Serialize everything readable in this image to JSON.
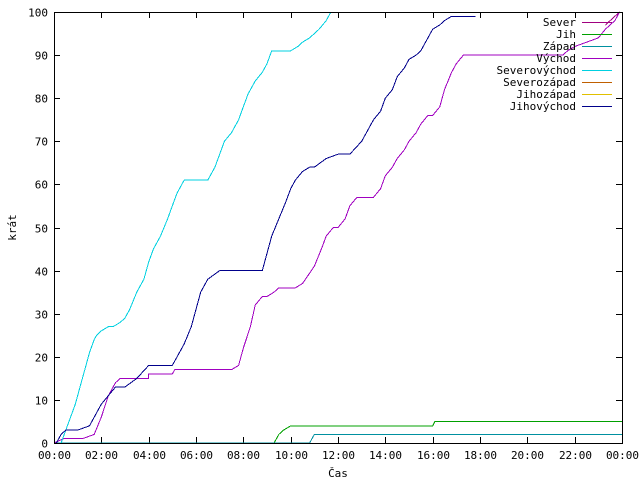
{
  "chart_data": {
    "type": "line",
    "xlabel": "Čas",
    "ylabel": "krát",
    "xlim": [
      0,
      24
    ],
    "ylim": [
      0,
      100
    ],
    "grid": false,
    "legend_position": "top-right",
    "x_ticks": [
      "00:00",
      "02:00",
      "04:00",
      "06:00",
      "08:00",
      "10:00",
      "12:00",
      "14:00",
      "16:00",
      "18:00",
      "20:00",
      "22:00",
      "00:00"
    ],
    "y_ticks": [
      "0",
      "10",
      "20",
      "30",
      "40",
      "50",
      "60",
      "70",
      "80",
      "90",
      "100"
    ],
    "series": [
      {
        "name": "Sever",
        "color": "#a0007f",
        "x": [
          23.3,
          23.9
        ],
        "y": [
          97,
          100
        ]
      },
      {
        "name": "Jih",
        "color": "#00a000",
        "x": [
          0,
          9.3,
          9.5,
          9.7,
          10.0,
          16.0,
          16.1,
          24.0
        ],
        "y": [
          0,
          0,
          2,
          3,
          4,
          4,
          5,
          5
        ]
      },
      {
        "name": "Západ",
        "color": "#0090a0",
        "x": [
          0,
          10.8,
          11.0,
          24.0
        ],
        "y": [
          0,
          0,
          2,
          2
        ]
      },
      {
        "name": "Východ",
        "color": "#a000c0",
        "x": [
          0,
          0.4,
          1.2,
          1.7,
          2.0,
          2.3,
          2.6,
          2.8,
          2.9,
          3.5,
          4.0,
          4.0,
          5.0,
          5.1,
          6.5,
          7.5,
          7.8,
          8.0,
          8.3,
          8.5,
          8.8,
          9.0,
          9.3,
          9.5,
          9.6,
          10.2,
          10.5,
          11.0,
          11.3,
          11.5,
          11.8,
          12.0,
          12.3,
          12.5,
          12.8,
          13.0,
          13.5,
          13.8,
          14.0,
          14.3,
          14.5,
          14.8,
          15.0,
          15.3,
          15.5,
          15.8,
          16.0,
          16.3,
          16.5,
          16.8,
          17.0,
          17.3,
          17.5,
          17.8,
          18.0,
          18.5,
          19.5,
          20.0,
          21.5,
          21.7,
          22.0,
          22.5,
          23.0,
          23.3,
          23.7,
          23.9
        ],
        "y": [
          0,
          1,
          1,
          2,
          6,
          11,
          14,
          15,
          15,
          15,
          15,
          16,
          16,
          17,
          17,
          17,
          18,
          22,
          27,
          32,
          34,
          34,
          35,
          36,
          36,
          36,
          37,
          41,
          45,
          48,
          50,
          50,
          52,
          55,
          57,
          57,
          57,
          59,
          62,
          64,
          66,
          68,
          70,
          72,
          74,
          76,
          76,
          78,
          82,
          86,
          88,
          90,
          90,
          90,
          90,
          90,
          90,
          90,
          90,
          91,
          92,
          93,
          94,
          96,
          98,
          100
        ]
      },
      {
        "name": "Severovýchod",
        "color": "#00d0e0",
        "x": [
          0.3,
          0.5,
          0.7,
          0.9,
          1.1,
          1.3,
          1.5,
          1.7,
          1.8,
          2.0,
          2.3,
          2.5,
          2.8,
          3.0,
          3.2,
          3.5,
          3.8,
          4.0,
          4.2,
          4.5,
          4.8,
          5.0,
          5.2,
          5.5,
          6.0,
          6.5,
          6.8,
          7.0,
          7.2,
          7.5,
          7.8,
          8.0,
          8.2,
          8.5,
          8.8,
          9.0,
          9.2,
          9.5,
          10.0,
          10.3,
          10.5,
          10.8,
          11.0,
          11.2,
          11.5,
          11.7
        ],
        "y": [
          0,
          3,
          6,
          9,
          13,
          17,
          21,
          24,
          25,
          26,
          27,
          27,
          28,
          29,
          31,
          35,
          38,
          42,
          45,
          48,
          52,
          55,
          58,
          61,
          61,
          61,
          64,
          67,
          70,
          72,
          75,
          78,
          81,
          84,
          86,
          88,
          91,
          91,
          91,
          92,
          93,
          94,
          95,
          96,
          98,
          100
        ]
      },
      {
        "name": "Severozápad",
        "color": "#c06000",
        "x": [],
        "y": []
      },
      {
        "name": "Jihozápad",
        "color": "#e0c000",
        "x": [],
        "y": []
      },
      {
        "name": "Jihovýchod",
        "color": "#00008b",
        "x": [
          0.1,
          0.3,
          0.5,
          1.0,
          1.5,
          1.8,
          2.0,
          2.3,
          2.6,
          3.0,
          3.5,
          4.0,
          4.5,
          5.0,
          5.2,
          5.5,
          5.8,
          6.0,
          6.2,
          6.5,
          7.0,
          8.0,
          8.8,
          9.0,
          9.2,
          9.5,
          9.8,
          10.0,
          10.2,
          10.5,
          10.8,
          11.0,
          11.5,
          12.0,
          12.5,
          13.0,
          13.2,
          13.5,
          13.8,
          14.0,
          14.3,
          14.5,
          14.8,
          15.0,
          15.3,
          15.5,
          15.8,
          16.0,
          16.3,
          16.5,
          16.8,
          17.0,
          17.3,
          17.8
        ],
        "y": [
          0,
          2,
          3,
          3,
          4,
          7,
          9,
          11,
          13,
          13,
          15,
          18,
          18,
          18,
          20,
          23,
          27,
          31,
          35,
          38,
          40,
          40,
          40,
          44,
          48,
          52,
          56,
          59,
          61,
          63,
          64,
          64,
          66,
          67,
          67,
          70,
          72,
          75,
          77,
          80,
          82,
          85,
          87,
          89,
          90,
          91,
          94,
          96,
          97,
          98,
          99,
          99,
          99,
          99
        ]
      }
    ]
  }
}
